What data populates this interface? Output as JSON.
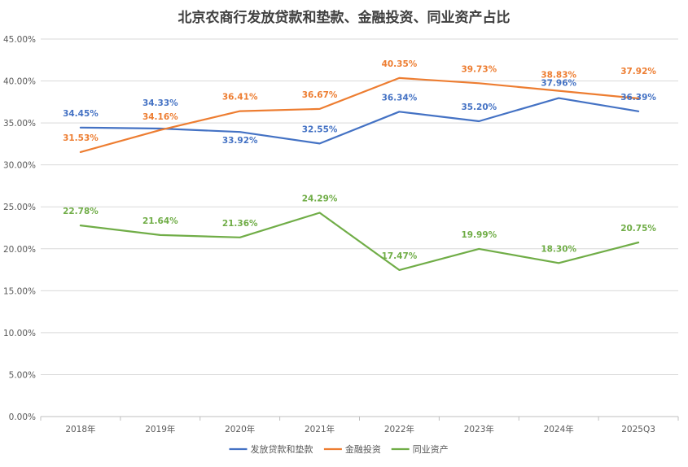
{
  "chart_data": {
    "type": "line",
    "title": "北京农商行发放贷款和垫款、金融投资、同业资产占比",
    "categories": [
      "2018年",
      "2019年",
      "2020年",
      "2021年",
      "2022年",
      "2023年",
      "2024年",
      "2025Q3"
    ],
    "ylim": [
      0,
      45
    ],
    "y_ticks": [
      "0.00%",
      "5.00%",
      "10.00%",
      "15.00%",
      "20.00%",
      "25.00%",
      "30.00%",
      "35.00%",
      "40.00%",
      "45.00%"
    ],
    "grid": true,
    "legend_position": "bottom",
    "series": [
      {
        "name": "发放贷款和垫款",
        "color": "#4472c4",
        "values": [
          34.45,
          34.33,
          33.92,
          32.55,
          36.34,
          35.2,
          37.96,
          36.39
        ],
        "labels": [
          "34.45%",
          "34.33%",
          "33.92%",
          "32.55%",
          "36.34%",
          "35.20%",
          "37.96%",
          "36.39%"
        ]
      },
      {
        "name": "金融投资",
        "color": "#ed7d31",
        "values": [
          31.53,
          34.16,
          36.41,
          36.67,
          40.35,
          39.73,
          38.83,
          37.92
        ],
        "labels": [
          "31.53%",
          "34.16%",
          "36.41%",
          "36.67%",
          "40.35%",
          "39.73%",
          "38.83%",
          "37.92%"
        ]
      },
      {
        "name": "同业资产",
        "color": "#70ad47",
        "values": [
          22.78,
          21.64,
          21.36,
          24.29,
          17.47,
          19.99,
          18.3,
          20.75
        ],
        "labels": [
          "22.78%",
          "21.64%",
          "21.36%",
          "24.29%",
          "17.47%",
          "19.99%",
          "18.30%",
          "20.75%"
        ]
      }
    ]
  }
}
